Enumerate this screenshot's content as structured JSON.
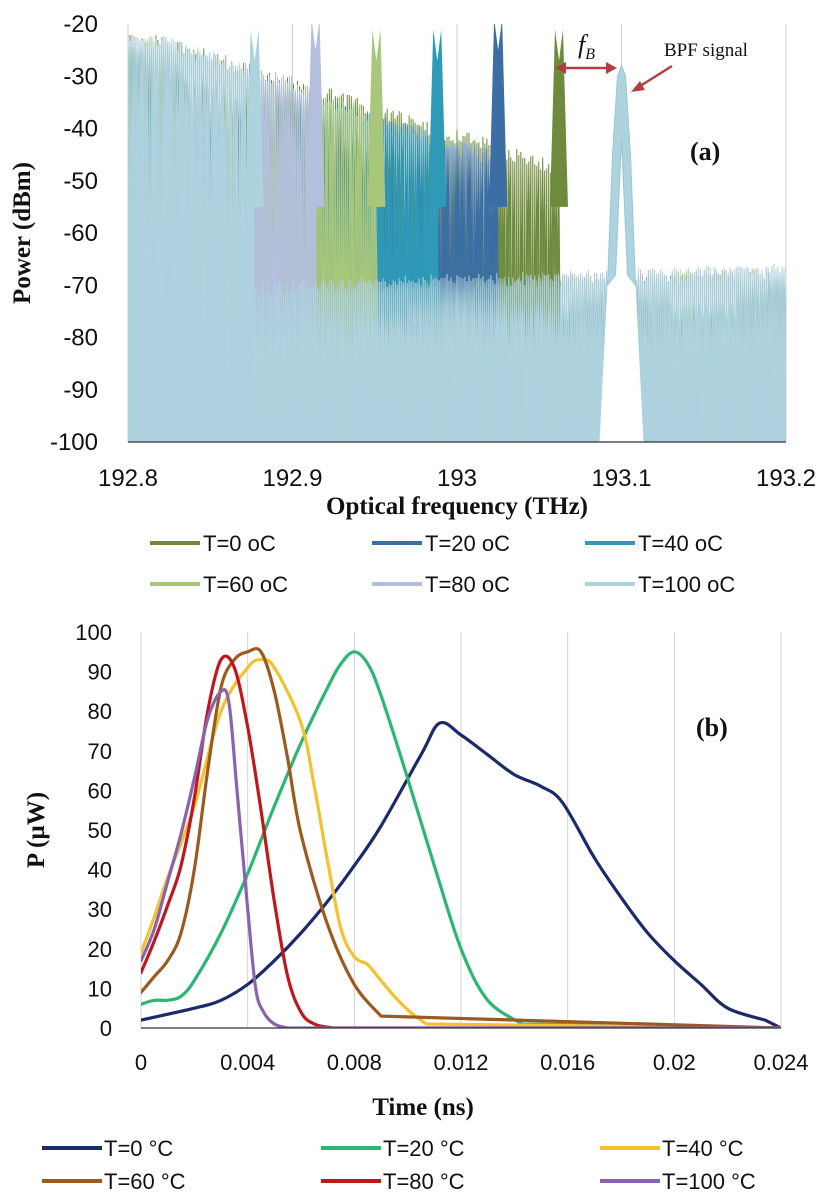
{
  "chart_data": [
    {
      "panel": "(a)",
      "type": "line",
      "xlabel": "Optical frequency (THz)",
      "ylabel": "Power (dBm)",
      "xlim": [
        192.8,
        193.2
      ],
      "ylim": [
        -100,
        -20
      ],
      "xticks": [
        "192.8",
        "192.9",
        "193",
        "193.1",
        "193.2"
      ],
      "yticks": [
        "-20",
        "-30",
        "-40",
        "-50",
        "-60",
        "-70",
        "-80",
        "-90",
        "-100"
      ],
      "grid": "vertical",
      "annotations": {
        "fb": "fB",
        "bpf": "BPF signal"
      },
      "legend_position": "bottom",
      "series": [
        {
          "name": "T=0 oC",
          "color": "#6e8b3d",
          "peak_x": 193.062,
          "peak_y": -27,
          "floor_left": -60
        },
        {
          "name": "T=20 oC",
          "color": "#3a6ea5",
          "peak_x": 193.025,
          "peak_y": -25,
          "floor_left": -62
        },
        {
          "name": "T=40 oC",
          "color": "#2e9ab8",
          "peak_x": 192.988,
          "peak_y": -27,
          "floor_left": -62
        },
        {
          "name": "T=60 oC",
          "color": "#a9c77a",
          "peak_x": 192.951,
          "peak_y": -27,
          "floor_left": -61
        },
        {
          "name": "T=80 oC",
          "color": "#b3bfdc",
          "peak_x": 192.914,
          "peak_y": -25,
          "floor_left": -60
        },
        {
          "name": "T=100 oC",
          "color": "#add3de",
          "peak_x": 192.877,
          "peak_y": -27,
          "floor_left": -60
        }
      ],
      "bpf": {
        "center": 193.1,
        "peak": -28,
        "color": "#add3de"
      }
    },
    {
      "panel": "(b)",
      "type": "line",
      "xlabel": "Time (ns)",
      "ylabel": "P (µW)",
      "xlim": [
        0,
        0.024
      ],
      "ylim": [
        0,
        100
      ],
      "xticks": [
        "0",
        "0.004",
        "0.008",
        "0.012",
        "0.016",
        "0.02",
        "0.024"
      ],
      "yticks": [
        "100",
        "90",
        "80",
        "70",
        "60",
        "50",
        "40",
        "30",
        "20",
        "10",
        "0"
      ],
      "grid": "vertical",
      "legend_position": "bottom",
      "series": [
        {
          "name": "T=0 °C",
          "color": "#1b2a6b",
          "x": [
            0,
            0.002,
            0.003,
            0.004,
            0.005,
            0.006,
            0.007,
            0.008,
            0.009,
            0.0105,
            0.0112,
            0.012,
            0.013,
            0.014,
            0.015,
            0.0158,
            0.017,
            0.018,
            0.019,
            0.02,
            0.021,
            0.022,
            0.0234
          ],
          "y": [
            2,
            5,
            7,
            11,
            17,
            24,
            32,
            41,
            51,
            69,
            77,
            74,
            69,
            64,
            61,
            57,
            43,
            33,
            24,
            17,
            11,
            5,
            2
          ]
        },
        {
          "name": "T=20 °C",
          "color": "#2bb673",
          "x": [
            0,
            0.0005,
            0.001,
            0.0015,
            0.002,
            0.003,
            0.004,
            0.005,
            0.006,
            0.007,
            0.0075,
            0.008,
            0.0085,
            0.009,
            0.01,
            0.011,
            0.012,
            0.013,
            0.0143
          ],
          "y": [
            6,
            7,
            7,
            8,
            12,
            24,
            39,
            56,
            72,
            86,
            92,
            95,
            92,
            84,
            63,
            41,
            20,
            7,
            1
          ]
        },
        {
          "name": "T=40 °C",
          "color": "#f5c12e",
          "x": [
            0,
            0.0005,
            0.001,
            0.002,
            0.003,
            0.004,
            0.0045,
            0.005,
            0.006,
            0.0065,
            0.007,
            0.0075,
            0.008,
            0.0085,
            0.009,
            0.0095,
            0.0101,
            0.0107
          ],
          "y": [
            19,
            28,
            38,
            56,
            80,
            91,
            93,
            91,
            77,
            61,
            42,
            25,
            18,
            16,
            12,
            8,
            4,
            1
          ]
        },
        {
          "name": "T=60 °C",
          "color": "#9c5a1f",
          "x": [
            0,
            0.0005,
            0.001,
            0.0015,
            0.002,
            0.0025,
            0.003,
            0.0035,
            0.004,
            0.0045,
            0.005,
            0.0055,
            0.006,
            0.007,
            0.008,
            0.009
          ],
          "y": [
            9,
            13,
            17,
            24,
            40,
            65,
            86,
            93,
            95,
            95,
            85,
            68,
            49,
            26,
            11,
            3
          ]
        },
        {
          "name": "T=80 °C",
          "color": "#c0161d",
          "x": [
            0,
            0.0005,
            0.001,
            0.0015,
            0.002,
            0.0025,
            0.003,
            0.0035,
            0.004,
            0.0045,
            0.005,
            0.0055,
            0.006,
            0.0065,
            0.0072
          ],
          "y": [
            14,
            22,
            31,
            41,
            58,
            80,
            93,
            91,
            76,
            55,
            32,
            13,
            4,
            1,
            0
          ]
        },
        {
          "name": "T=100 °C",
          "color": "#8a63b0",
          "x": [
            0,
            0.0005,
            0.001,
            0.0015,
            0.002,
            0.0025,
            0.003,
            0.0033,
            0.0036,
            0.004,
            0.0043,
            0.0046,
            0.005,
            0.0055
          ],
          "y": [
            17,
            25,
            37,
            49,
            63,
            78,
            85,
            82,
            60,
            30,
            10,
            4,
            1,
            0
          ]
        }
      ]
    }
  ],
  "legend_a": [
    "T=0 oC",
    "T=20 oC",
    "T=40 oC",
    "T=60 oC",
    "T=80 oC",
    "T=100 oC"
  ],
  "legend_b": [
    "T=0 °C",
    "T=20 °C",
    "T=40 °C",
    "T=60 °C",
    "T=80  °C",
    "T=100  °C"
  ]
}
